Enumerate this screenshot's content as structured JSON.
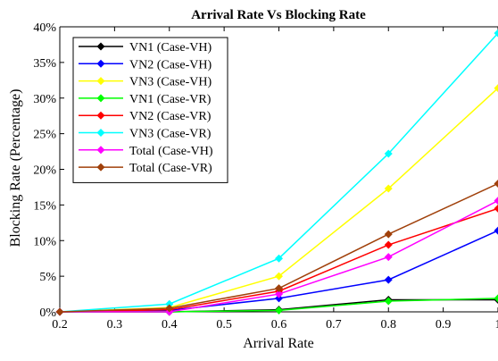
{
  "chart_data": {
    "type": "line",
    "title": "Arrival Rate Vs Blocking Rate",
    "xlabel": "Arrival Rate",
    "ylabel": "Blocking Rate (Percentage)",
    "x": [
      0.2,
      0.4,
      0.6,
      0.8,
      1.0
    ],
    "xlim": [
      0.2,
      1.0
    ],
    "ylim": [
      0,
      40
    ],
    "x_ticks": [
      "0.2",
      "0.3",
      "0.4",
      "0.5",
      "0.6",
      "0.7",
      "0.8",
      "0.9",
      "1"
    ],
    "y_ticks": [
      "0%",
      "5%",
      "10%",
      "15%",
      "20%",
      "25%",
      "30%",
      "35%",
      "40%"
    ],
    "grid": false,
    "legend_position": "top-left",
    "marker": "diamond",
    "series": [
      {
        "name": "VN1 (Case-VH)",
        "color": "#000000",
        "values": [
          0,
          0,
          0.3,
          1.7,
          1.7
        ]
      },
      {
        "name": "VN2 (Case-VH)",
        "color": "#0000ff",
        "values": [
          0,
          0.2,
          1.9,
          4.5,
          11.4
        ]
      },
      {
        "name": "VN3 (Case-VH)",
        "color": "#ffff00",
        "values": [
          0,
          0.6,
          5.0,
          17.3,
          31.4
        ]
      },
      {
        "name": "VN1 (Case-VR)",
        "color": "#00ff00",
        "values": [
          0,
          0,
          0.2,
          1.5,
          1.9
        ]
      },
      {
        "name": "VN2 (Case-VR)",
        "color": "#ff0000",
        "values": [
          0,
          0.3,
          2.9,
          9.4,
          14.5
        ]
      },
      {
        "name": "VN3 (Case-VR)",
        "color": "#00ffff",
        "values": [
          0,
          1.1,
          7.5,
          22.2,
          39.1
        ]
      },
      {
        "name": "Total (Case-VH)",
        "color": "#ff00ff",
        "values": [
          0,
          0,
          2.5,
          7.7,
          15.6
        ]
      },
      {
        "name": "Total (Case-VR)",
        "color": "#a0400a",
        "values": [
          0,
          0.5,
          3.3,
          10.9,
          18.0
        ]
      }
    ]
  }
}
